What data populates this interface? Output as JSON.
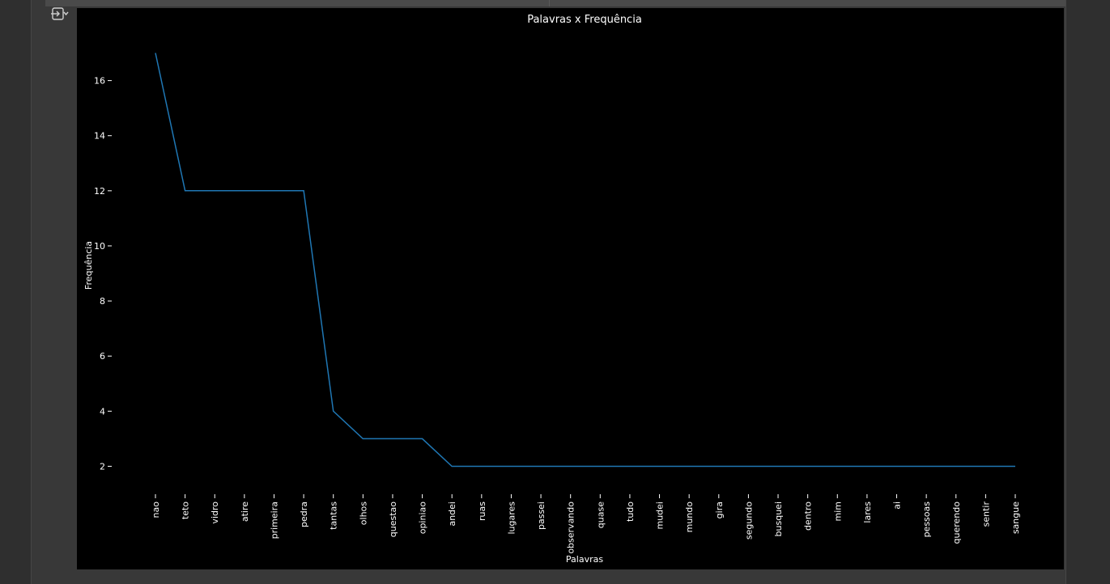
{
  "toolbar": {
    "output_icon": "output-toggle-icon"
  },
  "colors": {
    "background": "#383838",
    "figure_background": "#000000",
    "line": "#1f77b4",
    "text": "#ffffff"
  },
  "chart_data": {
    "type": "line",
    "title": "Palavras x Frequência",
    "xlabel": "Palavras",
    "ylabel": "Frequência",
    "categories": [
      "nao",
      "teto",
      "vidro",
      "atire",
      "primeira",
      "pedra",
      "tantas",
      "olhos",
      "questao",
      "opiniao",
      "andei",
      "ruas",
      "lugares",
      "passei",
      "observando",
      "quase",
      "tudo",
      "mudei",
      "mundo",
      "gira",
      "segundo",
      "busquei",
      "dentro",
      "mim",
      "lares",
      "ai",
      "pessoas",
      "querendo",
      "sentir",
      "sangue"
    ],
    "values": [
      17,
      12,
      12,
      12,
      12,
      12,
      4,
      3,
      3,
      3,
      2,
      2,
      2,
      2,
      2,
      2,
      2,
      2,
      2,
      2,
      2,
      2,
      2,
      2,
      2,
      2,
      2,
      2,
      2,
      2
    ],
    "yticks": [
      2,
      4,
      6,
      8,
      10,
      12,
      14,
      16
    ],
    "ylim": [
      1.25,
      17.75
    ],
    "grid": false,
    "legend": "none"
  }
}
